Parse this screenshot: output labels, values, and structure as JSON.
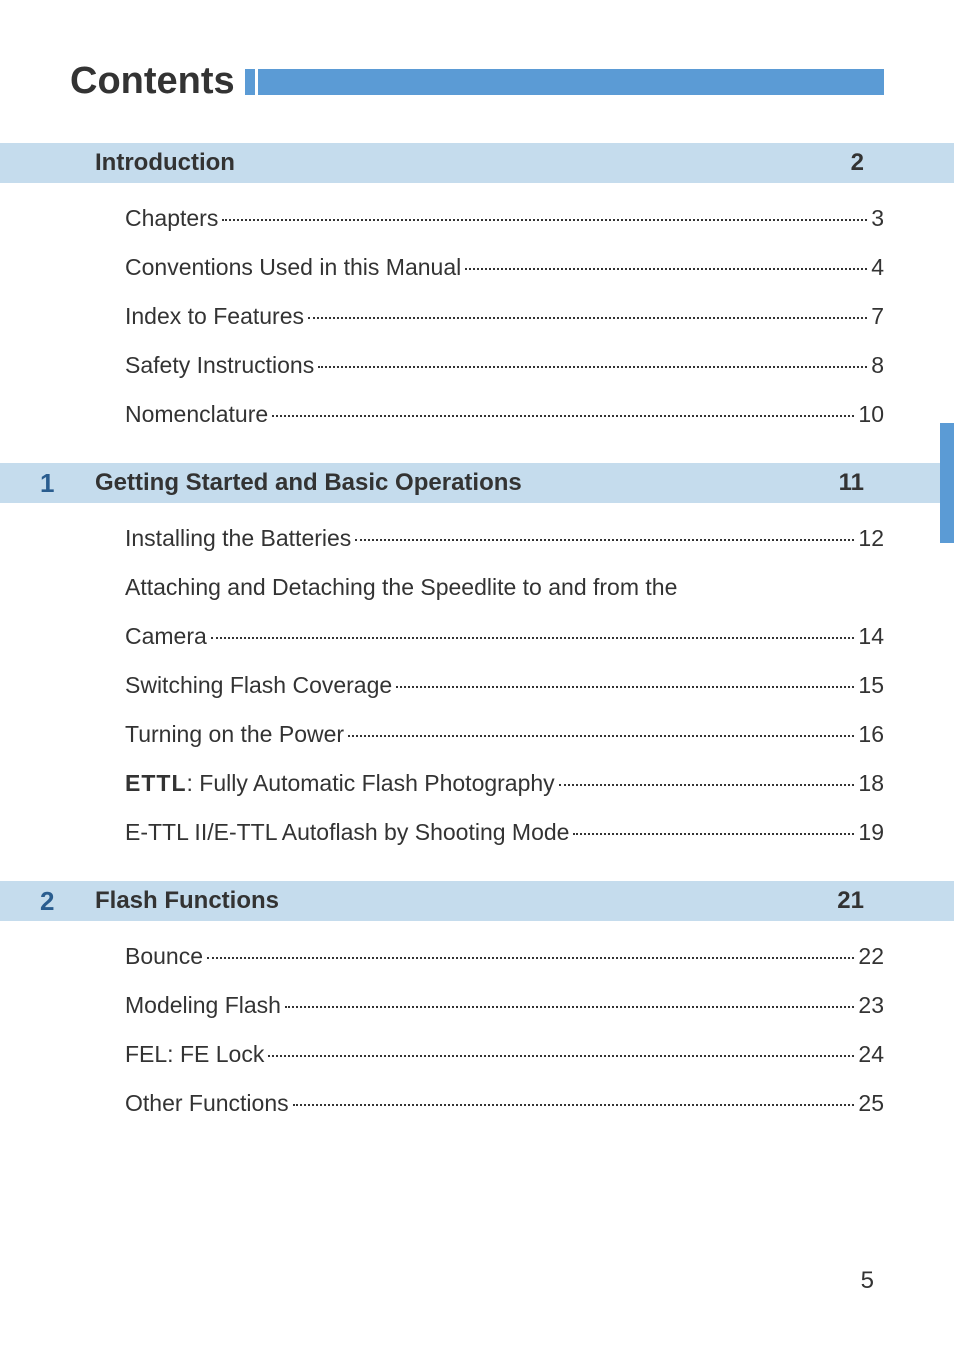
{
  "page_title": "Contents",
  "page_number": "5",
  "colors": {
    "header_bar": "#5b9bd5",
    "section_bg": "#c5dced",
    "chapter_num": "#2a5d8f",
    "text": "#333333",
    "side_tab": "#5b9bd5"
  },
  "sections": [
    {
      "number": "",
      "title": "Introduction",
      "page": "2",
      "entries": [
        {
          "text": "Chapters",
          "page": "3"
        },
        {
          "text": "Conventions Used in this Manual",
          "page": "4"
        },
        {
          "text": "Index to Features",
          "page": "7"
        },
        {
          "text": "Safety Instructions",
          "page": "8"
        },
        {
          "text": "Nomenclature",
          "page": "10"
        }
      ]
    },
    {
      "number": "1",
      "title": "Getting Started and Basic Operations",
      "page": "11",
      "entries": [
        {
          "text": "Installing the Batteries",
          "page": "12"
        },
        {
          "text_line1": "Attaching and Detaching the Speedlite to and from the",
          "text_line2": "Camera",
          "page": "14",
          "multiline": true
        },
        {
          "text": "Switching Flash Coverage",
          "page": "15"
        },
        {
          "text": "Turning on the Power",
          "page": "16"
        },
        {
          "prefix": "ETTL",
          "text": ": Fully Automatic Flash Photography",
          "page": "18"
        },
        {
          "text": "E-TTL II/E-TTL Autoflash by Shooting Mode",
          "page": "19"
        }
      ]
    },
    {
      "number": "2",
      "title": "Flash Functions",
      "page": "21",
      "entries": [
        {
          "text": "Bounce",
          "page": "22"
        },
        {
          "text": "Modeling Flash",
          "page": "23"
        },
        {
          "text": "FEL: FE Lock",
          "page": "24"
        },
        {
          "text": "Other Functions",
          "page": "25"
        }
      ]
    }
  ]
}
